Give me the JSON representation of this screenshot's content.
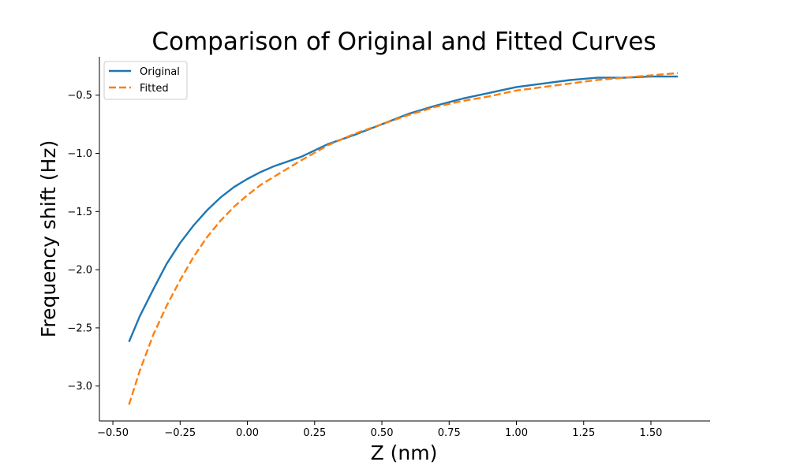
{
  "chart_data": {
    "type": "line",
    "title": "Comparison of Original and Fitted Curves",
    "xlabel": "Z (nm)",
    "ylabel": "Frequency shift (Hz)",
    "xlim": [
      -0.55,
      1.72
    ],
    "ylim": [
      -3.3,
      -0.17
    ],
    "xticks": [
      -0.5,
      -0.25,
      0.0,
      0.25,
      0.5,
      0.75,
      1.0,
      1.25,
      1.5
    ],
    "xtick_labels": [
      "−0.50",
      "−0.25",
      "0.00",
      "0.25",
      "0.50",
      "0.75",
      "1.00",
      "1.25",
      "1.50"
    ],
    "yticks": [
      -3.0,
      -2.5,
      -2.0,
      -1.5,
      -1.0,
      -0.5
    ],
    "ytick_labels": [
      "−3.0",
      "−2.5",
      "−2.0",
      "−1.5",
      "−1.0",
      "−0.5"
    ],
    "grid": false,
    "legend_position": "top-left",
    "series": [
      {
        "name": "Original",
        "color": "#1f77b4",
        "style": "solid",
        "x": [
          -0.44,
          -0.4,
          -0.35,
          -0.3,
          -0.25,
          -0.2,
          -0.15,
          -0.1,
          -0.05,
          0.0,
          0.05,
          0.1,
          0.2,
          0.3,
          0.4,
          0.5,
          0.6,
          0.7,
          0.8,
          0.9,
          1.0,
          1.1,
          1.2,
          1.3,
          1.4,
          1.5,
          1.6
        ],
        "y": [
          -2.62,
          -2.4,
          -2.17,
          -1.95,
          -1.77,
          -1.62,
          -1.49,
          -1.38,
          -1.29,
          -1.22,
          -1.16,
          -1.11,
          -1.03,
          -0.92,
          -0.84,
          -0.75,
          -0.66,
          -0.59,
          -0.53,
          -0.48,
          -0.43,
          -0.4,
          -0.37,
          -0.35,
          -0.35,
          -0.34,
          -0.34
        ]
      },
      {
        "name": "Fitted",
        "color": "#ff7f0e",
        "style": "dashed",
        "x": [
          -0.44,
          -0.4,
          -0.35,
          -0.3,
          -0.25,
          -0.2,
          -0.15,
          -0.1,
          -0.05,
          0.0,
          0.05,
          0.1,
          0.2,
          0.3,
          0.4,
          0.5,
          0.6,
          0.7,
          0.8,
          0.9,
          1.0,
          1.1,
          1.2,
          1.3,
          1.4,
          1.5,
          1.6
        ],
        "y": [
          -3.16,
          -2.87,
          -2.56,
          -2.31,
          -2.09,
          -1.89,
          -1.72,
          -1.58,
          -1.46,
          -1.36,
          -1.27,
          -1.2,
          -1.06,
          -0.93,
          -0.83,
          -0.75,
          -0.67,
          -0.6,
          -0.55,
          -0.51,
          -0.46,
          -0.43,
          -0.4,
          -0.37,
          -0.35,
          -0.33,
          -0.31
        ]
      }
    ]
  }
}
